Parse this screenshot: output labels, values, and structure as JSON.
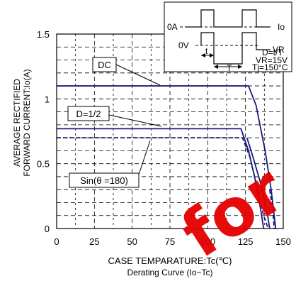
{
  "chart_data": {
    "type": "line",
    "title": "",
    "subtitle": "Derating Curve (Io−Tc)",
    "xlabel": "CASE TEMPARATURE:Tc(℃)",
    "ylabel_line1": "AVERAGE RECTIFIED",
    "ylabel_line2": "FORWARD CURRENT:Io(A)",
    "xlim": [
      0,
      150
    ],
    "ylim": [
      0,
      1.5
    ],
    "x_ticks": [
      "0",
      "25",
      "50",
      "75",
      "100",
      "125",
      "150"
    ],
    "y_ticks": [
      "0",
      "0.5",
      "1",
      "1.5"
    ],
    "grid": true,
    "series": [
      {
        "name": "DC",
        "style": "solid",
        "points": [
          [
            0,
            1.1
          ],
          [
            127,
            1.1
          ],
          [
            132,
            0.95
          ],
          [
            138,
            0.6
          ],
          [
            142,
            0.3
          ],
          [
            145,
            0.0
          ]
        ]
      },
      {
        "name": "D=1/2",
        "style": "solid",
        "points": [
          [
            0,
            0.77
          ],
          [
            122,
            0.77
          ],
          [
            127,
            0.6
          ],
          [
            131,
            0.4
          ],
          [
            135,
            0.15
          ],
          [
            137,
            0.0
          ]
        ]
      },
      {
        "name": "Sin(θ =180)",
        "style": "dashed",
        "points": [
          [
            0,
            0.7
          ],
          [
            123,
            0.7
          ],
          [
            128,
            0.55
          ],
          [
            133,
            0.3
          ],
          [
            137,
            0.1
          ],
          [
            140,
            0.0
          ]
        ]
      },
      {
        "name": "",
        "style": "solid",
        "points": [
          [
            126,
            0.7
          ],
          [
            130,
            0.55
          ],
          [
            135,
            0.35
          ],
          [
            139,
            0.15
          ],
          [
            141,
            0.0
          ]
        ]
      },
      {
        "name": "",
        "style": "dashed",
        "points": [
          [
            141,
            0.3
          ],
          [
            143,
            0.15
          ],
          [
            144,
            0.0
          ]
        ]
      }
    ],
    "annotations": {
      "dc_label": "DC",
      "half_label": "D=1/2",
      "sin_label": "Sin(θ =180)"
    },
    "inset": {
      "label_0a": "0A",
      "label_0v": "0V",
      "label_io": "Io",
      "label_vr": "VR",
      "label_t": "t",
      "label_T": "T",
      "label_duty": "D=t/T",
      "label_vr_value": "VR=15V",
      "label_tj": "Tj=150°C"
    },
    "watermark": "for",
    "colors": {
      "curve": "#1a1a7a",
      "watermark": "#e60000",
      "grid": "#000000"
    }
  }
}
